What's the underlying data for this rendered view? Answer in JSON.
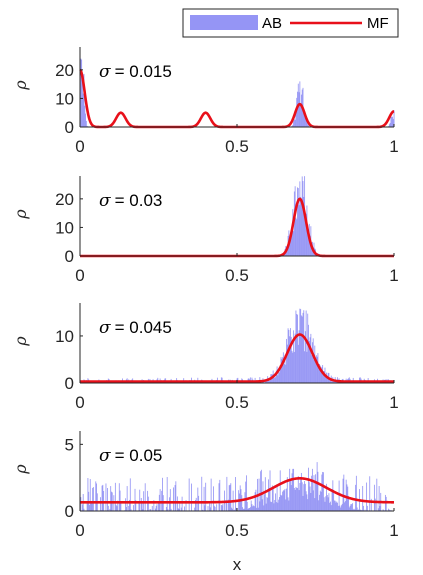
{
  "colors": {
    "histogram": "#7b7bf2",
    "curve": "#e8101a",
    "axis": "#262626"
  },
  "legend": {
    "entries": [
      "AB",
      "MF"
    ],
    "placement": "top-right"
  },
  "chart_data": [
    {
      "type": "area",
      "annotation": {
        "symbol": "σ",
        "value": "= 0.015"
      },
      "ylabel": "ρ",
      "xlabel": "",
      "xlim": [
        0,
        1
      ],
      "ylim": [
        0,
        28
      ],
      "xticks": [
        "0",
        "0.5",
        "1"
      ],
      "xtick_values": [
        0,
        0.5,
        1
      ],
      "yticks": [
        "0",
        "10",
        "20"
      ],
      "ytick_values": [
        0,
        10,
        20
      ],
      "series": [
        {
          "name": "MF",
          "kind": "line",
          "peaks": [
            {
              "mu": 0.0,
              "sigma": 0.015,
              "height": 20
            },
            {
              "mu": 0.13,
              "sigma": 0.015,
              "height": 5
            },
            {
              "mu": 0.4,
              "sigma": 0.015,
              "height": 5
            },
            {
              "mu": 0.7,
              "sigma": 0.015,
              "height": 8
            },
            {
              "mu": 1.0,
              "sigma": 0.015,
              "height": 5.5
            }
          ],
          "baseline": 0
        },
        {
          "name": "AB",
          "kind": "histogram",
          "clusters": [
            {
              "mu": 0.005,
              "sigma": 0.006,
              "height": 24
            },
            {
              "mu": 0.7,
              "sigma": 0.01,
              "height": 14
            },
            {
              "mu": 0.995,
              "sigma": 0.006,
              "height": 5
            }
          ],
          "noise": 0
        }
      ]
    },
    {
      "type": "area",
      "annotation": {
        "symbol": "σ",
        "value": "= 0.03"
      },
      "ylabel": "ρ",
      "xlabel": "",
      "xlim": [
        0,
        1
      ],
      "ylim": [
        0,
        28
      ],
      "xticks": [
        "0",
        "0.5",
        "1"
      ],
      "xtick_values": [
        0,
        0.5,
        1
      ],
      "yticks": [
        "0",
        "10",
        "20"
      ],
      "ytick_values": [
        0,
        10,
        20
      ],
      "series": [
        {
          "name": "MF",
          "kind": "line",
          "peaks": [
            {
              "mu": 0.7,
              "sigma": 0.02,
              "height": 20
            }
          ],
          "baseline": 0
        },
        {
          "name": "AB",
          "kind": "histogram",
          "clusters": [
            {
              "mu": 0.7,
              "sigma": 0.022,
              "height": 24
            }
          ],
          "noise": 0
        }
      ]
    },
    {
      "type": "area",
      "annotation": {
        "symbol": "σ",
        "value": "= 0.045"
      },
      "ylabel": "ρ",
      "xlabel": "",
      "xlim": [
        0,
        1
      ],
      "ylim": [
        0,
        17
      ],
      "xticks": [
        "0",
        "0.5",
        "1"
      ],
      "xtick_values": [
        0,
        0.5,
        1
      ],
      "yticks": [
        "0",
        "10"
      ],
      "ytick_values": [
        0,
        10
      ],
      "series": [
        {
          "name": "MF",
          "kind": "line",
          "peaks": [
            {
              "mu": 0.7,
              "sigma": 0.04,
              "height": 10
            }
          ],
          "baseline": 0.3
        },
        {
          "name": "AB",
          "kind": "histogram",
          "clusters": [
            {
              "mu": 0.7,
              "sigma": 0.04,
              "height": 12
            }
          ],
          "noise": 1.2
        }
      ]
    },
    {
      "type": "area",
      "annotation": {
        "symbol": "σ",
        "value": "= 0.05"
      },
      "ylabel": "ρ",
      "xlabel": "x",
      "xlim": [
        0,
        1
      ],
      "ylim": [
        0,
        6
      ],
      "xticks": [
        "0",
        "0.5",
        "1"
      ],
      "xtick_values": [
        0,
        0.5,
        1
      ],
      "yticks": [
        "0",
        "5"
      ],
      "ytick_values": [
        0,
        5
      ],
      "series": [
        {
          "name": "MF",
          "kind": "line",
          "peaks": [
            {
              "mu": 0.7,
              "sigma": 0.085,
              "height": 1.8
            }
          ],
          "baseline": 0.65
        },
        {
          "name": "AB",
          "kind": "histogram",
          "clusters": [
            {
              "mu": 0.7,
              "sigma": 0.08,
              "height": 1.5
            }
          ],
          "noise": 2.6
        }
      ]
    }
  ]
}
